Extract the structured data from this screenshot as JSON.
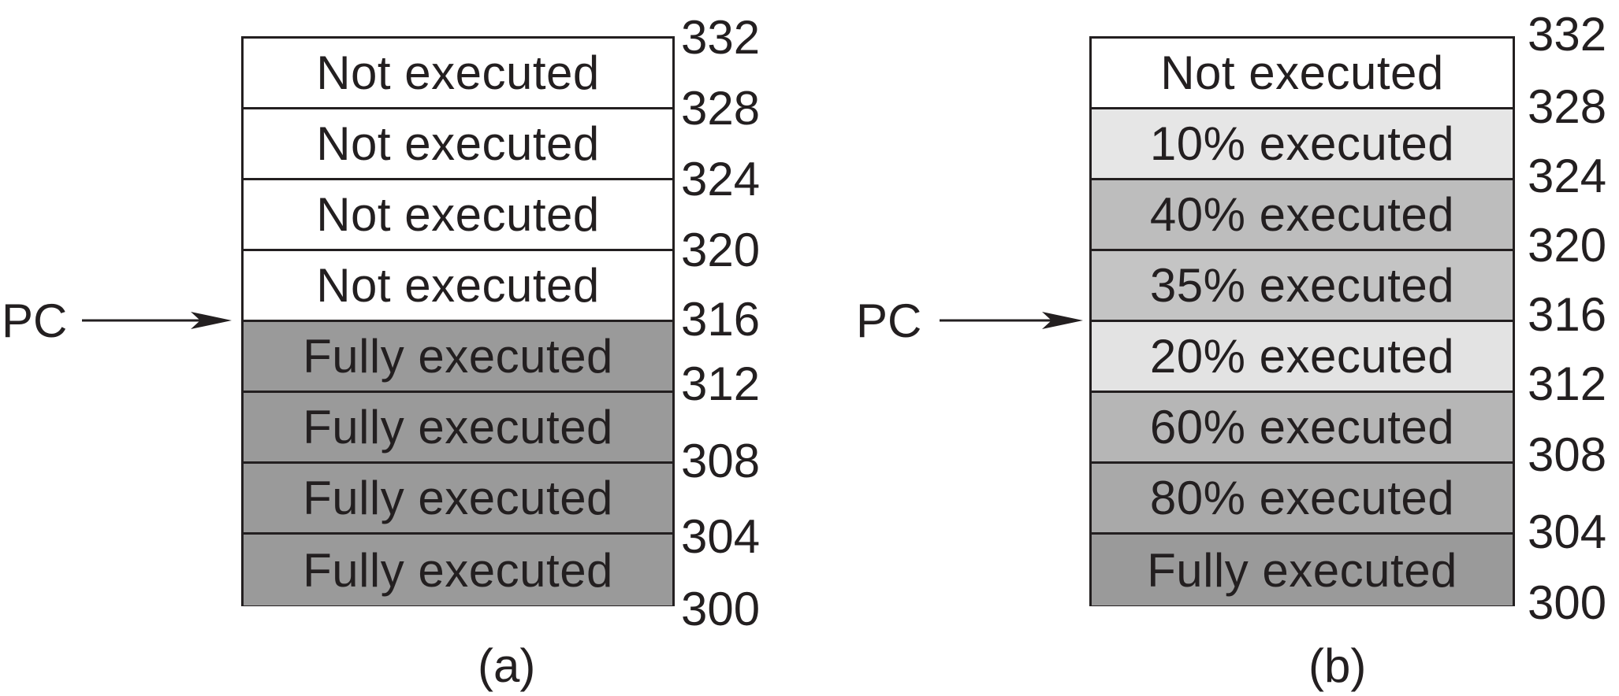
{
  "panels": [
    {
      "id": "a",
      "caption": "(a)",
      "pc_label": "PC",
      "cells": [
        {
          "label": "Not executed",
          "fill": "#ffffff"
        },
        {
          "label": "Not executed",
          "fill": "#ffffff"
        },
        {
          "label": "Not executed",
          "fill": "#ffffff"
        },
        {
          "label": "Not executed",
          "fill": "#ffffff"
        },
        {
          "label": "Fully executed",
          "fill": "#9a9a9a"
        },
        {
          "label": "Fully executed",
          "fill": "#9a9a9a"
        },
        {
          "label": "Fully executed",
          "fill": "#9a9a9a"
        },
        {
          "label": "Fully executed",
          "fill": "#9a9a9a"
        }
      ],
      "addresses": [
        "332",
        "328",
        "324",
        "320",
        "316",
        "312",
        "308",
        "304",
        "300"
      ]
    },
    {
      "id": "b",
      "caption": "(b)",
      "pc_label": "PC",
      "cells": [
        {
          "label": "Not executed",
          "fill": "#ffffff"
        },
        {
          "label": "10% executed",
          "fill": "#e6e6e6"
        },
        {
          "label": "40% executed",
          "fill": "#bdbdbd"
        },
        {
          "label": "35% executed",
          "fill": "#c4c4c4"
        },
        {
          "label": "20% executed",
          "fill": "#e3e3e3"
        },
        {
          "label": "60% executed",
          "fill": "#b6b6b6"
        },
        {
          "label": "80% executed",
          "fill": "#a9a9a9"
        },
        {
          "label": "Fully executed",
          "fill": "#9a9a9a"
        }
      ],
      "addresses": [
        "332",
        "328",
        "324",
        "320",
        "316",
        "312",
        "308",
        "304",
        "300"
      ]
    }
  ]
}
